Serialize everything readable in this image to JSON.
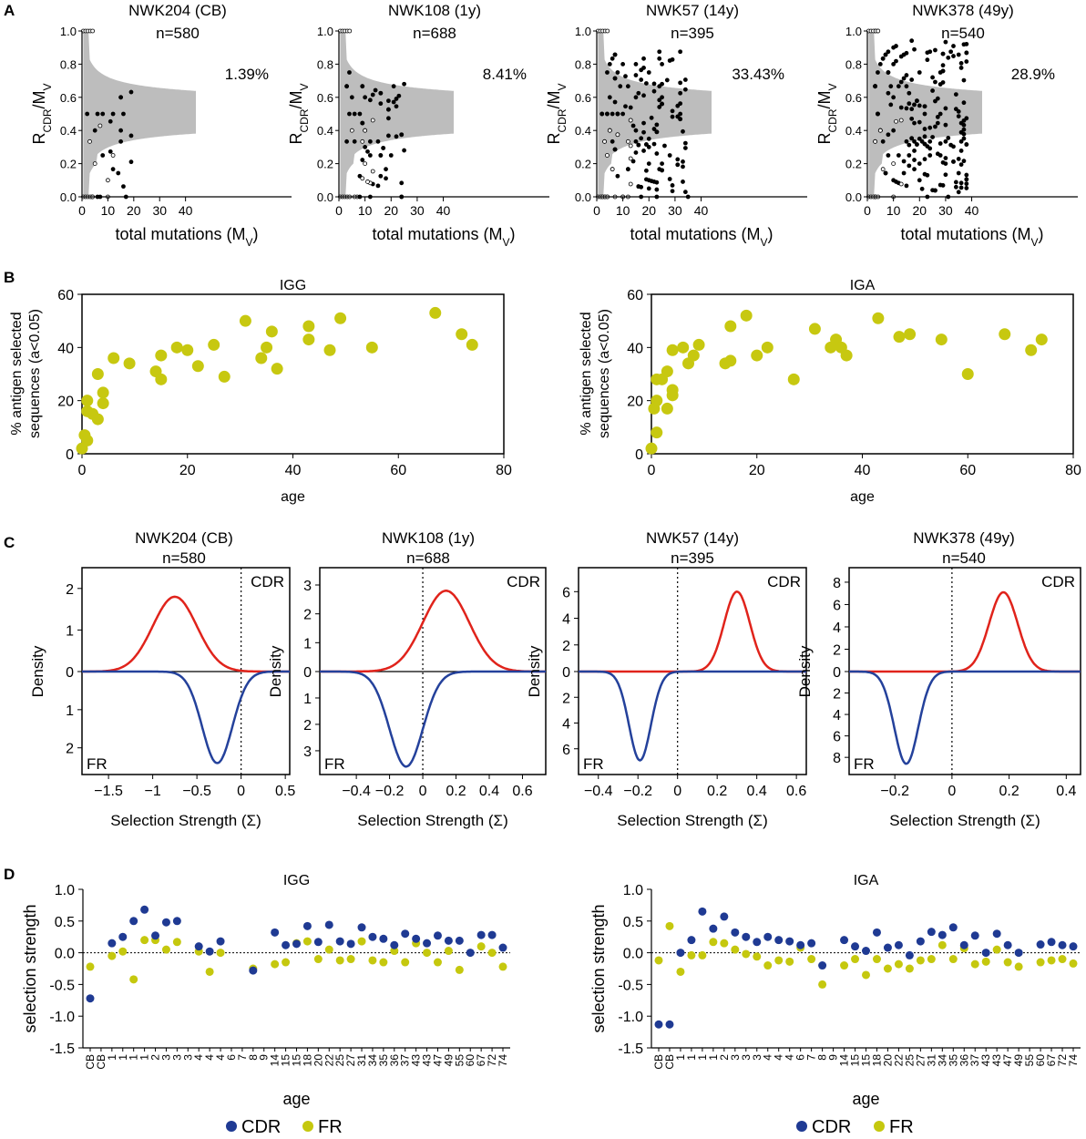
{
  "colors": {
    "cdr_red": "#e0231b",
    "fr_blue": "#24419b",
    "yellow": "#c7c810",
    "cdr_dot": "#1f3a93",
    "fr_dot": "#c5c80e",
    "gray_band": "#bdbdbd"
  },
  "panel_labels": [
    "A",
    "B",
    "C",
    "D"
  ],
  "panel_a": [
    {
      "title": "NWK204 (CB)",
      "n": "n=580",
      "percent": "1.39%",
      "ylabel_main": "R",
      "ylabel_sub": "CDR",
      "ylabel_rest": "/M",
      "ylabel_sub2": "V",
      "xlabel_main": "total mutations (M",
      "xlabel_sub": "V",
      "xlabel_end": ")",
      "xlim": [
        0,
        44
      ],
      "ylim": [
        0,
        1
      ],
      "xticks": [
        "0",
        "10",
        "20",
        "30",
        "40"
      ],
      "yticks": [
        "0.0",
        "0.2",
        "0.4",
        "0.6",
        "0.8",
        "1.0"
      ],
      "spread": 0.35,
      "ndots": 30
    },
    {
      "title": "NWK108 (1y)",
      "n": "n=688",
      "percent": "8.41%",
      "ylabel_main": "R",
      "ylabel_sub": "CDR",
      "ylabel_rest": "/M",
      "ylabel_sub2": "V",
      "xlabel_main": "total mutations (M",
      "xlabel_sub": "V",
      "xlabel_end": ")",
      "xlim": [
        0,
        44
      ],
      "ylim": [
        0,
        1
      ],
      "xticks": [
        "0",
        "10",
        "20",
        "30",
        "40"
      ],
      "yticks": [
        "0.0",
        "0.2",
        "0.4",
        "0.6",
        "0.8",
        "1.0"
      ],
      "spread": 0.5,
      "ndots": 70
    },
    {
      "title": "NWK57 (14y)",
      "n": "n=395",
      "percent": "33.43%",
      "ylabel_main": "R",
      "ylabel_sub": "CDR",
      "ylabel_rest": "/M",
      "ylabel_sub2": "V",
      "xlabel_main": "total mutations (M",
      "xlabel_sub": "V",
      "xlabel_end": ")",
      "xlim": [
        0,
        44
      ],
      "ylim": [
        0,
        1
      ],
      "xticks": [
        "0",
        "10",
        "20",
        "30",
        "40"
      ],
      "yticks": [
        "0.0",
        "0.2",
        "0.4",
        "0.6",
        "0.8",
        "1.0"
      ],
      "spread": 0.85,
      "ndots": 150
    },
    {
      "title": "NWK378 (49y)",
      "n": "n=540",
      "percent": "28.9%",
      "ylabel_main": "R",
      "ylabel_sub": "CDR",
      "ylabel_rest": "/M",
      "ylabel_sub2": "V",
      "xlabel_main": "total mutations (M",
      "xlabel_sub": "V",
      "xlabel_end": ")",
      "xlim": [
        0,
        44
      ],
      "ylim": [
        0,
        1
      ],
      "xticks": [
        "0",
        "10",
        "20",
        "30",
        "40"
      ],
      "yticks": [
        "0.0",
        "0.2",
        "0.4",
        "0.6",
        "0.8",
        "1.0"
      ],
      "spread": 0.95,
      "ndots": 200
    }
  ],
  "panel_b": [
    {
      "title": "IGG",
      "type": "scatter",
      "ylabel_1": "% antigen selected",
      "ylabel_2": "sequences (a<0.05)",
      "xlabel": "age",
      "xlim": [
        0,
        80
      ],
      "ylim": [
        0,
        60
      ],
      "xticks": [
        "0",
        "20",
        "40",
        "60",
        "80"
      ],
      "yticks": [
        "0",
        "20",
        "40",
        "60"
      ],
      "points": [
        [
          0,
          2
        ],
        [
          0.5,
          7
        ],
        [
          1,
          5
        ],
        [
          1,
          16
        ],
        [
          1,
          20
        ],
        [
          2,
          15
        ],
        [
          3,
          13
        ],
        [
          3,
          30
        ],
        [
          4,
          19
        ],
        [
          4,
          23
        ],
        [
          6,
          36
        ],
        [
          9,
          34
        ],
        [
          14,
          31
        ],
        [
          15,
          28
        ],
        [
          15,
          37
        ],
        [
          18,
          40
        ],
        [
          20,
          39
        ],
        [
          22,
          33
        ],
        [
          25,
          41
        ],
        [
          27,
          29
        ],
        [
          31,
          50
        ],
        [
          34,
          36
        ],
        [
          35,
          40
        ],
        [
          36,
          46
        ],
        [
          37,
          32
        ],
        [
          43,
          48
        ],
        [
          43,
          43
        ],
        [
          47,
          39
        ],
        [
          49,
          51
        ],
        [
          55,
          40
        ],
        [
          67,
          53
        ],
        [
          72,
          45
        ],
        [
          74,
          41
        ]
      ]
    },
    {
      "title": "IGA",
      "type": "scatter",
      "ylabel_1": "% antigen selected",
      "ylabel_2": "sequences (a<0.05)",
      "xlabel": "age",
      "xlim": [
        0,
        80
      ],
      "ylim": [
        0,
        60
      ],
      "xticks": [
        "0",
        "20",
        "40",
        "60",
        "80"
      ],
      "yticks": [
        "0",
        "20",
        "40",
        "60"
      ],
      "points": [
        [
          0,
          2
        ],
        [
          0.5,
          17
        ],
        [
          1,
          8
        ],
        [
          1,
          20
        ],
        [
          1,
          28
        ],
        [
          2,
          28
        ],
        [
          3,
          17
        ],
        [
          3,
          31
        ],
        [
          4,
          24
        ],
        [
          4,
          22
        ],
        [
          4,
          39
        ],
        [
          6,
          40
        ],
        [
          7,
          34
        ],
        [
          8,
          37
        ],
        [
          9,
          41
        ],
        [
          14,
          34
        ],
        [
          15,
          35
        ],
        [
          15,
          48
        ],
        [
          18,
          52
        ],
        [
          20,
          37
        ],
        [
          22,
          40
        ],
        [
          27,
          28
        ],
        [
          31,
          47
        ],
        [
          34,
          40
        ],
        [
          35,
          43
        ],
        [
          36,
          40
        ],
        [
          37,
          37
        ],
        [
          43,
          51
        ],
        [
          47,
          44
        ],
        [
          49,
          45
        ],
        [
          55,
          43
        ],
        [
          60,
          30
        ],
        [
          67,
          45
        ],
        [
          72,
          39
        ],
        [
          74,
          43
        ]
      ]
    }
  ],
  "panel_c": [
    {
      "title": "NWK204 (CB)",
      "n": "n=580",
      "cdr_label": "CDR",
      "fr_label": "FR",
      "ylabel": "Density",
      "xlabel": "Selection Strength (Σ)",
      "xlim": [
        -1.8,
        0.55
      ],
      "xticks": [
        -1.5,
        -1,
        -0.5,
        0,
        0.5
      ],
      "xtick_labels": [
        "−1.5",
        "−1",
        "−0.5",
        "0",
        "0.5"
      ],
      "ymax_top": 2.5,
      "ymax_bot": 2.7,
      "yticks_top": [
        0,
        1,
        2
      ],
      "yticks_bot": [
        1,
        2
      ],
      "cdr_mean": -0.75,
      "cdr_sd": 0.25,
      "cdr_peak": 1.8,
      "fr_mean": -0.27,
      "fr_sd": 0.17,
      "fr_peak": 2.4
    },
    {
      "title": "NWK108 (1y)",
      "n": "n=688",
      "cdr_label": "CDR",
      "fr_label": "FR",
      "ylabel": "Density",
      "xlabel": "Selection Strength (Σ)",
      "xlim": [
        -0.62,
        0.74
      ],
      "xticks": [
        -0.4,
        -0.2,
        0,
        0.2,
        0.4,
        0.6
      ],
      "xtick_labels": [
        "−0.4",
        "−0.2",
        "0",
        "0.2",
        "0.4",
        "0.6"
      ],
      "ymax_top": 3.6,
      "ymax_bot": 3.9,
      "yticks_top": [
        0,
        1,
        2,
        3
      ],
      "yticks_bot": [
        1,
        2,
        3
      ],
      "cdr_mean": 0.14,
      "cdr_sd": 0.14,
      "cdr_peak": 2.8,
      "fr_mean": -0.1,
      "fr_sd": 0.1,
      "fr_peak": 3.6
    },
    {
      "title": "NWK57 (14y)",
      "n": "n=395",
      "cdr_label": "CDR",
      "fr_label": "FR",
      "ylabel": "Density",
      "xlabel": "Selection Strength (Σ)",
      "xlim": [
        -0.5,
        0.65
      ],
      "xticks": [
        -0.4,
        -0.2,
        0,
        0.2,
        0.4,
        0.6
      ],
      "xtick_labels": [
        "−0.4",
        "−0.2",
        "0",
        "0.2",
        "0.4",
        "0.6"
      ],
      "ymax_top": 7.8,
      "ymax_bot": 8.0,
      "yticks_top": [
        0,
        2,
        4,
        6
      ],
      "yticks_bot": [
        2,
        4,
        6
      ],
      "cdr_mean": 0.3,
      "cdr_sd": 0.065,
      "cdr_peak": 6.0,
      "fr_mean": -0.19,
      "fr_sd": 0.055,
      "fr_peak": 6.9
    },
    {
      "title": "NWK378 (49y)",
      "n": "n=540",
      "cdr_label": "CDR",
      "fr_label": "FR",
      "ylabel": "Density",
      "xlabel": "Selection Strength (Σ)",
      "xlim": [
        -0.36,
        0.45
      ],
      "xticks": [
        -0.2,
        0,
        0.2,
        0.4
      ],
      "xtick_labels": [
        "−0.2",
        "0",
        "0.2",
        "0.4"
      ],
      "ymax_top": 9.3,
      "ymax_bot": 9.6,
      "yticks_top": [
        0,
        2,
        4,
        6,
        8
      ],
      "yticks_bot": [
        2,
        4,
        6,
        8
      ],
      "cdr_mean": 0.18,
      "cdr_sd": 0.05,
      "cdr_peak": 7.1,
      "fr_mean": -0.16,
      "fr_sd": 0.042,
      "fr_peak": 8.6
    }
  ],
  "panel_d": [
    {
      "title": "IGG",
      "ylabel": "selection strength",
      "xlabel": "age",
      "ylim": [
        -1.5,
        1.0
      ],
      "yticks": [
        "1.0",
        "0.5",
        "0.0",
        "-0.5",
        "-1.0",
        "-1.5"
      ],
      "categories": [
        "CB",
        "CB",
        "1",
        "1",
        "1",
        "1",
        "2",
        "3",
        "3",
        "3",
        "4",
        "4",
        "4",
        "6",
        "7",
        "8",
        "9",
        "14",
        "15",
        "15",
        "18",
        "20",
        "22",
        "25",
        "27",
        "31",
        "34",
        "35",
        "36",
        "37",
        "43",
        "43",
        "47",
        "49",
        "55",
        "60",
        "67",
        "72",
        "74"
      ],
      "cdr": [
        -0.72,
        null,
        0.15,
        0.25,
        0.5,
        0.68,
        0.27,
        0.48,
        0.5,
        null,
        0.1,
        0.02,
        0.18,
        null,
        null,
        -0.28,
        null,
        0.32,
        0.12,
        0.14,
        0.42,
        0.17,
        0.44,
        0.18,
        0.14,
        0.4,
        0.25,
        0.22,
        0.12,
        0.3,
        0.22,
        0.15,
        0.27,
        0.19,
        0.19,
        0.0,
        0.28,
        0.28,
        0.08
      ],
      "fr": [
        -0.22,
        null,
        -0.05,
        0.02,
        -0.42,
        0.2,
        0.2,
        0.05,
        0.17,
        null,
        0.02,
        -0.3,
        0.0,
        null,
        null,
        -0.25,
        null,
        -0.18,
        -0.15,
        0.15,
        0.18,
        -0.1,
        0.05,
        -0.12,
        -0.1,
        0.18,
        -0.12,
        -0.15,
        0.03,
        -0.15,
        0.15,
        0.0,
        -0.15,
        0.03,
        -0.27,
        null,
        0.1,
        0.0,
        -0.22
      ]
    },
    {
      "title": "IGA",
      "ylabel": "selection strength",
      "xlabel": "age",
      "ylim": [
        -1.5,
        1.0
      ],
      "yticks": [
        "1.0",
        "0.5",
        "0.0",
        "-0.5",
        "-1.0",
        "-1.5"
      ],
      "categories": [
        "CB",
        "CB",
        "1",
        "1",
        "1",
        "1",
        "2",
        "3",
        "3",
        "3",
        "4",
        "4",
        "4",
        "6",
        "7",
        "8",
        "9",
        "14",
        "15",
        "15",
        "18",
        "20",
        "22",
        "25",
        "27",
        "31",
        "34",
        "35",
        "36",
        "37",
        "43",
        "43",
        "47",
        "49",
        "55",
        "60",
        "67",
        "72",
        "74"
      ],
      "cdr": [
        -1.13,
        -1.13,
        0.0,
        0.2,
        0.65,
        0.38,
        0.57,
        0.32,
        0.25,
        0.17,
        0.25,
        0.2,
        0.18,
        0.12,
        0.15,
        -0.2,
        null,
        0.2,
        0.1,
        0.03,
        0.32,
        0.08,
        0.12,
        -0.04,
        0.18,
        0.33,
        0.28,
        0.4,
        0.12,
        0.27,
        0.0,
        0.3,
        0.12,
        0.0,
        null,
        0.13,
        0.17,
        0.12,
        0.1
      ],
      "fr": [
        -0.12,
        0.42,
        -0.3,
        -0.04,
        -0.04,
        0.17,
        0.15,
        0.05,
        -0.02,
        -0.06,
        -0.2,
        -0.12,
        -0.14,
        0.08,
        -0.1,
        -0.5,
        null,
        -0.2,
        -0.1,
        -0.35,
        -0.1,
        -0.25,
        -0.18,
        -0.25,
        -0.12,
        -0.1,
        0.12,
        -0.1,
        0.07,
        -0.18,
        -0.14,
        0.05,
        -0.15,
        -0.22,
        null,
        -0.15,
        -0.12,
        -0.1,
        -0.17
      ]
    }
  ],
  "legend": {
    "cdr": "CDR",
    "fr": "FR"
  }
}
